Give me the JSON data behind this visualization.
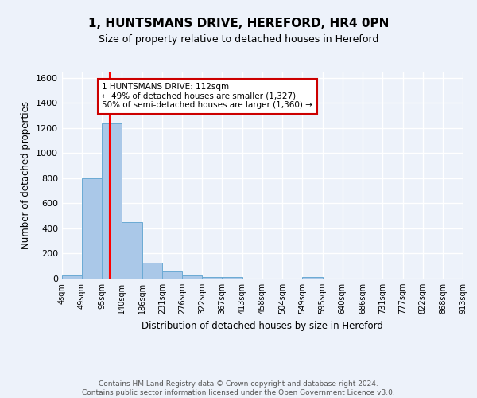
{
  "title": "1, HUNTSMANS DRIVE, HEREFORD, HR4 0PN",
  "subtitle": "Size of property relative to detached houses in Hereford",
  "xlabel": "Distribution of detached houses by size in Hereford",
  "ylabel": "Number of detached properties",
  "bar_edges": [
    4,
    49,
    95,
    140,
    186,
    231,
    276,
    322,
    367,
    413,
    458,
    504,
    549,
    595,
    640,
    686,
    731,
    777,
    822,
    868,
    913
  ],
  "bar_heights": [
    25,
    800,
    1240,
    450,
    130,
    60,
    25,
    15,
    15,
    0,
    0,
    0,
    15,
    0,
    0,
    0,
    0,
    0,
    0,
    0
  ],
  "bar_color": "#aac8e8",
  "bar_edgecolor": "#6aaad4",
  "bg_color": "#edf2fa",
  "grid_color": "#ffffff",
  "red_line_x": 112,
  "ylim": [
    0,
    1650
  ],
  "yticks": [
    0,
    200,
    400,
    600,
    800,
    1000,
    1200,
    1400,
    1600
  ],
  "annotation_text": "1 HUNTSMANS DRIVE: 112sqm\n← 49% of detached houses are smaller (1,327)\n50% of semi-detached houses are larger (1,360) →",
  "annotation_box_color": "#ffffff",
  "annotation_box_edgecolor": "#cc0000",
  "footer_line1": "Contains HM Land Registry data © Crown copyright and database right 2024.",
  "footer_line2": "Contains public sector information licensed under the Open Government Licence v3.0.",
  "tick_labels": [
    "4sqm",
    "49sqm",
    "95sqm",
    "140sqm",
    "186sqm",
    "231sqm",
    "276sqm",
    "322sqm",
    "367sqm",
    "413sqm",
    "458sqm",
    "504sqm",
    "549sqm",
    "595sqm",
    "640sqm",
    "686sqm",
    "731sqm",
    "777sqm",
    "822sqm",
    "868sqm",
    "913sqm"
  ]
}
